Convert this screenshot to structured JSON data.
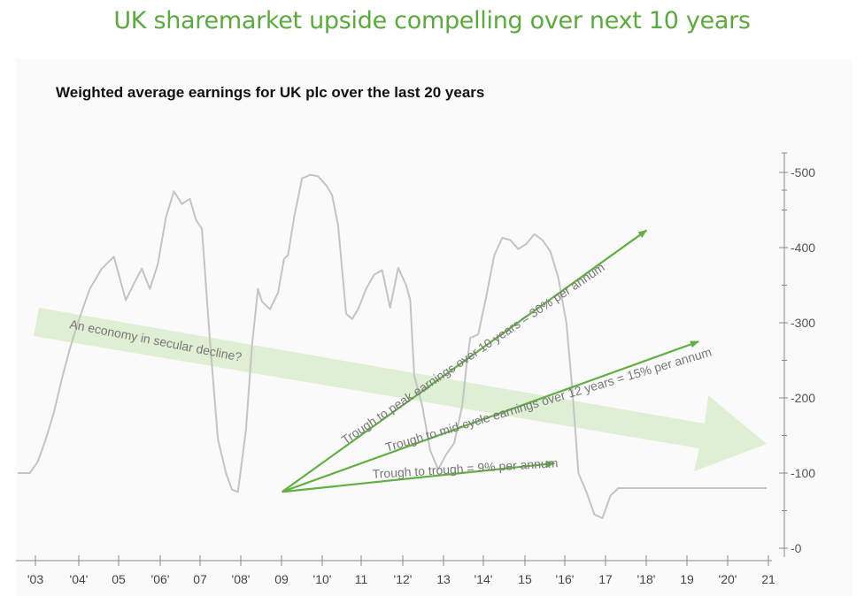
{
  "page_title": "UK sharemarket upside compelling over next 10 years",
  "colors": {
    "title_green": "#5aab3c",
    "line_grey": "#c4c4c4",
    "arrow_green": "#62b043",
    "band_green": "#d8eccd",
    "axis_grey": "#888888",
    "text_grey": "#777777"
  },
  "chart_data": {
    "type": "line",
    "title": "Weighted average earnings for UK plc over the last 20 years",
    "xlabel": "",
    "ylabel": "",
    "x_tick_labels": [
      "'03",
      "'04'",
      "05",
      "'06'",
      "07",
      "'08'",
      "09",
      "'10'",
      "11",
      "'12'",
      "13",
      "'14'",
      "15",
      "'16'",
      "17",
      "'18'",
      "19",
      "'20'",
      "21"
    ],
    "xlim": [
      2002.5,
      2021.2
    ],
    "y_ticks": [
      0,
      100,
      200,
      300,
      400,
      500
    ],
    "ylim": [
      -10,
      530
    ],
    "axis_position": "right",
    "series": [
      {
        "name": "Weighted average earnings",
        "x": [
          2002.5,
          2002.8,
          2003.0,
          2003.2,
          2003.4,
          2003.6,
          2003.8,
          2004.0,
          2004.3,
          2004.6,
          2004.9,
          2005.2,
          2005.4,
          2005.6,
          2005.8,
          2006.0,
          2006.2,
          2006.4,
          2006.6,
          2006.8,
          2006.95,
          2007.1,
          2007.3,
          2007.5,
          2007.7,
          2007.85,
          2008.0,
          2008.2,
          2008.35,
          2008.5,
          2008.6,
          2008.8,
          2009.0,
          2009.15,
          2009.25,
          2009.4,
          2009.6,
          2009.8,
          2010.0,
          2010.2,
          2010.35,
          2010.5,
          2010.7,
          2010.85,
          2011.0,
          2011.2,
          2011.4,
          2011.6,
          2011.8,
          2012.0,
          2012.2,
          2012.3,
          2012.4,
          2012.6,
          2012.8,
          2013.0,
          2013.2,
          2013.4,
          2013.6,
          2013.7,
          2013.8,
          2013.9,
          2014.0,
          2014.2,
          2014.4,
          2014.6,
          2014.8,
          2015.0,
          2015.2,
          2015.4,
          2015.6,
          2015.8,
          2016.0,
          2016.2,
          2016.35,
          2016.5,
          2016.7,
          2016.9,
          2017.1,
          2017.3,
          2017.5,
          2017.7,
          2017.9,
          2018.1,
          2018.3,
          2018.5,
          2018.7,
          2018.9,
          2019.1,
          2019.3,
          2019.5,
          2019.65,
          2019.8,
          2019.95,
          2020.05,
          2020.15,
          2020.3,
          2020.45,
          2020.6,
          2020.8,
          2021.0,
          2021.2
        ],
        "values": [
          100,
          100,
          115,
          145,
          180,
          225,
          265,
          300,
          345,
          372,
          388,
          330,
          352,
          372,
          345,
          378,
          440,
          475,
          458,
          465,
          437,
          425,
          275,
          145,
          100,
          78,
          75,
          158,
          270,
          345,
          328,
          318,
          340,
          385,
          390,
          440,
          492,
          497,
          495,
          483,
          470,
          430,
          312,
          305,
          318,
          345,
          364,
          370,
          320,
          373,
          350,
          330,
          230,
          190,
          130,
          105,
          125,
          140,
          190,
          240,
          280,
          282,
          285,
          335,
          390,
          413,
          410,
          398,
          405,
          418,
          410,
          395,
          360,
          300,
          210,
          100,
          75,
          45,
          40,
          70,
          80,
          80,
          80,
          80,
          80,
          80,
          80,
          80,
          80,
          80,
          80,
          80,
          80,
          80,
          80,
          80,
          80,
          80,
          80,
          80,
          80,
          80
        ]
      }
    ],
    "annotations": [
      {
        "text": "An economy in secular decline?"
      },
      {
        "text": "Trough to peak earnings over 10 years = 30% per annum",
        "from": [
          2009.1,
          75
        ],
        "to": [
          2018.2,
          423
        ]
      },
      {
        "text": "Trough to mid-cycle earnings over 12 years = 15% per annum",
        "from": [
          2009.1,
          75
        ],
        "to": [
          2019.5,
          275
        ]
      },
      {
        "text": "Trough to trough = 9% per annum",
        "from": [
          2009.1,
          75
        ],
        "to": [
          2015.9,
          113
        ]
      }
    ]
  }
}
